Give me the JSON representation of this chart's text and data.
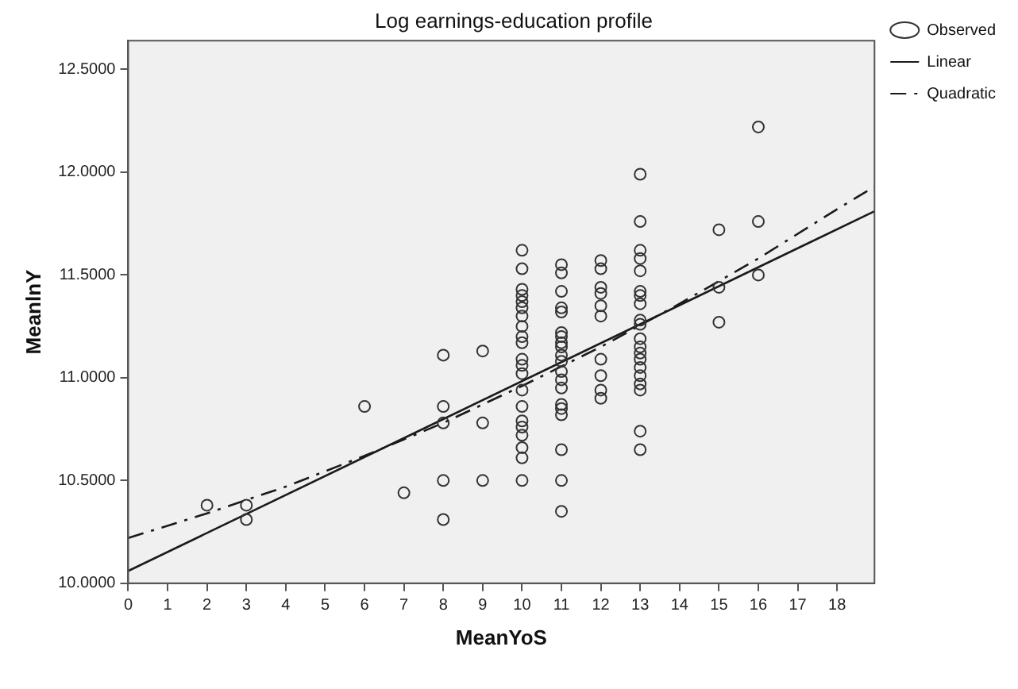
{
  "chart_data": {
    "type": "scatter",
    "title": "Log earnings-education profile",
    "xlabel": "MeanYoS",
    "ylabel": "MeanlnY",
    "xlim": [
      0,
      18.95
    ],
    "xticks": [
      0,
      1,
      2,
      3,
      4,
      5,
      6,
      7,
      8,
      9,
      10,
      11,
      12,
      13,
      14,
      15,
      16,
      17,
      18
    ],
    "ylim": [
      10,
      12.64
    ],
    "yticks": [
      {
        "value": 10,
        "label": "10.0000"
      },
      {
        "value": 10.5,
        "label": "10.5000"
      },
      {
        "value": 11,
        "label": "11.0000"
      },
      {
        "value": 11.5,
        "label": "11.5000"
      },
      {
        "value": 12,
        "label": "12.0000"
      },
      {
        "value": 12.5,
        "label": "12.5000"
      }
    ],
    "grid": false,
    "legend": "top right",
    "series": [
      {
        "name": "Observed",
        "marker": "circle",
        "color": "#333333",
        "x": [
          2,
          3,
          3,
          6,
          7,
          8,
          8,
          8,
          8,
          8,
          9,
          9,
          9,
          10,
          10,
          10,
          10,
          10,
          10,
          10,
          10,
          10,
          10,
          10,
          10,
          10,
          10,
          10,
          10,
          10,
          10,
          10,
          10,
          10,
          11,
          11,
          11,
          11,
          11,
          11,
          11,
          11,
          11,
          11,
          11,
          11,
          11,
          11,
          11,
          11,
          11,
          11,
          11,
          11,
          12,
          12,
          12,
          12,
          12,
          12,
          12,
          12,
          12,
          12,
          13,
          13,
          13,
          13,
          13,
          13,
          13,
          13,
          13,
          13,
          13,
          13,
          13,
          13,
          13,
          13,
          13,
          13,
          13,
          13,
          15,
          15,
          15,
          16,
          16,
          16
        ],
        "values": [
          10.38,
          10.38,
          10.31,
          10.86,
          10.44,
          11.11,
          10.86,
          10.78,
          10.5,
          10.31,
          11.13,
          10.78,
          10.5,
          11.62,
          11.53,
          11.43,
          11.4,
          11.37,
          11.34,
          11.3,
          11.25,
          11.2,
          11.17,
          11.09,
          11.06,
          11.02,
          10.94,
          10.86,
          10.79,
          10.76,
          10.72,
          10.66,
          10.61,
          10.5,
          11.55,
          11.51,
          11.42,
          11.34,
          11.32,
          11.22,
          11.2,
          11.17,
          11.15,
          11.11,
          11.08,
          11.03,
          10.99,
          10.95,
          10.87,
          10.85,
          10.82,
          10.65,
          10.5,
          10.35,
          11.57,
          11.53,
          11.44,
          11.41,
          11.35,
          11.3,
          11.09,
          11.01,
          10.94,
          10.9,
          11.99,
          11.76,
          11.62,
          11.58,
          11.52,
          11.42,
          11.4,
          11.36,
          11.28,
          11.26,
          11.19,
          11.15,
          11.12,
          11.09,
          11.05,
          11.01,
          10.97,
          10.94,
          10.74,
          10.65,
          11.72,
          11.44,
          11.27,
          12.22,
          11.76,
          11.5
        ]
      },
      {
        "name": "Linear",
        "type": "line",
        "marker": "none",
        "line_style": "solid",
        "color": "#1a1a1a",
        "x": [
          0,
          18.95
        ],
        "values": [
          10.06,
          11.81
        ]
      },
      {
        "name": "Quadratic",
        "type": "line",
        "marker": "none",
        "line_style": "dashed",
        "color": "#1a1a1a",
        "x": [
          0,
          2,
          4,
          6,
          8,
          10,
          12,
          14,
          16,
          18,
          18.95
        ],
        "values": [
          10.22,
          10.34,
          10.47,
          10.62,
          10.78,
          10.96,
          11.15,
          11.36,
          11.58,
          11.82,
          11.93
        ]
      }
    ]
  }
}
